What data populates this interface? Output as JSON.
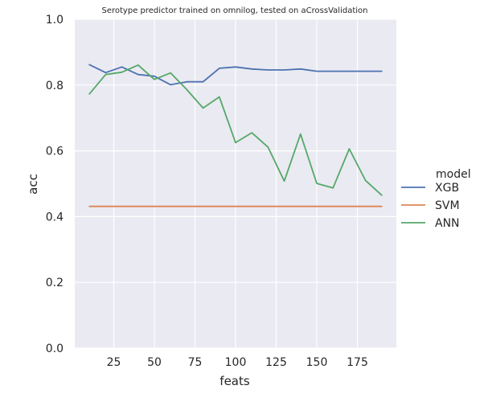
{
  "chart_data": {
    "type": "line",
    "title": "Serotype predictor trained on omnilog, tested on aCrossValidation",
    "xlabel": "feats",
    "ylabel": "acc",
    "xlim": [
      1,
      199
    ],
    "ylim": [
      0.0,
      1.0
    ],
    "xticks": [
      25,
      50,
      75,
      100,
      125,
      150,
      175
    ],
    "yticks": [
      0.0,
      0.2,
      0.4,
      0.6,
      0.8,
      1.0
    ],
    "xtick_labels": [
      "25",
      "50",
      "75",
      "100",
      "125",
      "150",
      "175"
    ],
    "ytick_labels": [
      "0.0",
      "0.2",
      "0.4",
      "0.6",
      "0.8",
      "1.0"
    ],
    "grid": true,
    "background": "#eaeaf2",
    "legend": {
      "title": "model",
      "placement": "right",
      "entries": [
        "XGB",
        "SVM",
        "ANN"
      ]
    },
    "x": [
      10,
      20,
      30,
      40,
      50,
      60,
      70,
      80,
      90,
      100,
      110,
      120,
      130,
      140,
      150,
      160,
      170,
      180,
      190
    ],
    "series": [
      {
        "name": "XGB",
        "color": "#4c72b0",
        "values": [
          0.862,
          0.838,
          0.855,
          0.832,
          0.827,
          0.801,
          0.81,
          0.81,
          0.851,
          0.855,
          0.849,
          0.846,
          0.846,
          0.849,
          0.842,
          0.842,
          0.842,
          0.842,
          0.842
        ]
      },
      {
        "name": "SVM",
        "color": "#dd8452",
        "values": [
          0.431,
          0.431,
          0.431,
          0.431,
          0.431,
          0.431,
          0.431,
          0.431,
          0.431,
          0.431,
          0.431,
          0.431,
          0.431,
          0.431,
          0.431,
          0.431,
          0.431,
          0.431,
          0.431
        ]
      },
      {
        "name": "ANN",
        "color": "#55a868",
        "values": [
          0.773,
          0.832,
          0.839,
          0.861,
          0.817,
          0.837,
          0.786,
          0.73,
          0.764,
          0.625,
          0.655,
          0.611,
          0.508,
          0.651,
          0.501,
          0.487,
          0.606,
          0.51,
          0.465
        ]
      }
    ]
  }
}
